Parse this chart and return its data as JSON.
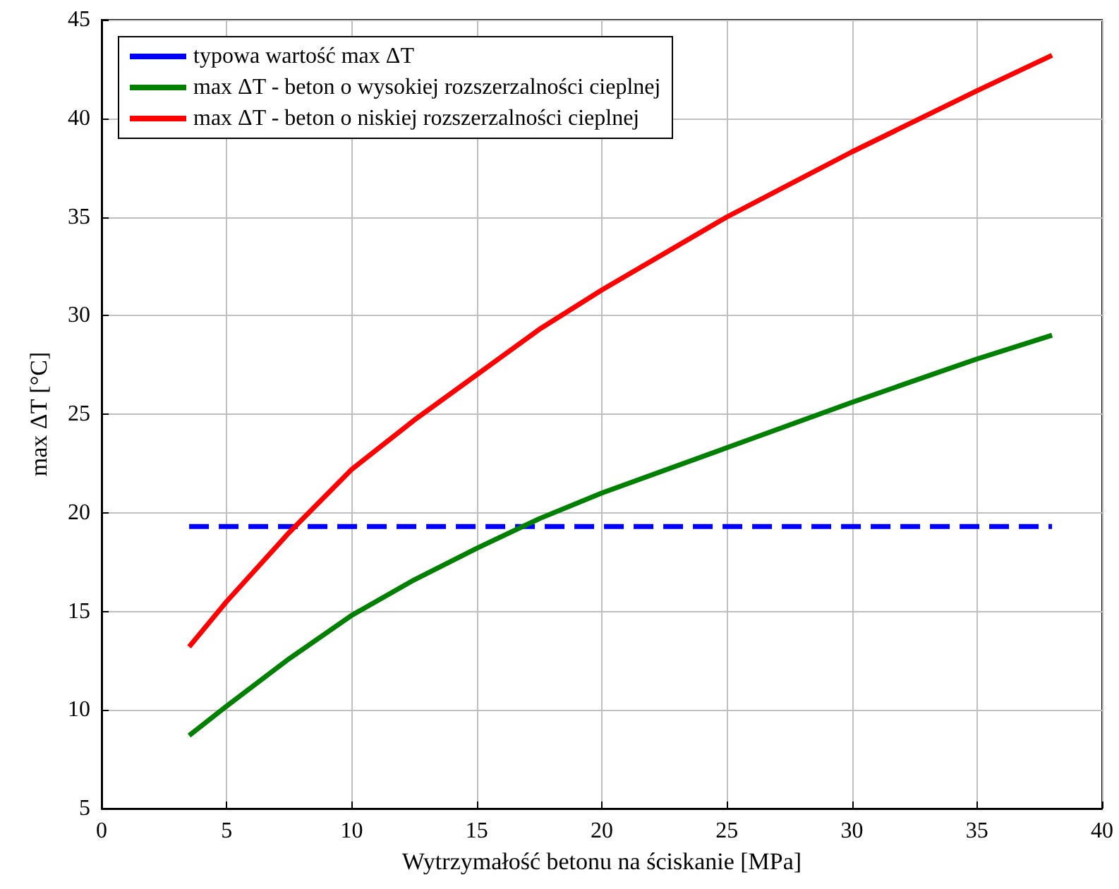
{
  "chart_data": {
    "type": "line",
    "xlabel": "Wytrzymałość betonu na ściskanie [MPa]",
    "ylabel": "max ΔT [°C]",
    "x": [
      3.5,
      5,
      7.5,
      10,
      12.5,
      15,
      17.5,
      20,
      25,
      30,
      35,
      38
    ],
    "series": [
      {
        "name": "typowa wartość max ΔT",
        "color": "#0000ff",
        "line_style": "dashed",
        "x": [
          3.5,
          38
        ],
        "values": [
          19.3,
          19.3
        ]
      },
      {
        "name": "max ΔT - beton o wysokiej rozszerzalności cieplnej",
        "color": "#008000",
        "values": [
          8.7,
          10.2,
          12.6,
          14.8,
          16.6,
          18.2,
          19.7,
          21,
          23.3,
          25.6,
          27.8,
          29
        ]
      },
      {
        "name": "max ΔT - beton o niskiej rozszerzalności cieplnej",
        "color": "#ff0000",
        "values": [
          13.2,
          15.5,
          19,
          22.2,
          24.7,
          27,
          29.3,
          31.3,
          35,
          38.3,
          41.4,
          43.2
        ]
      }
    ],
    "xlim": [
      0,
      40
    ],
    "xticks": [
      0,
      5,
      10,
      15,
      20,
      25,
      30,
      35,
      40
    ],
    "ylim": [
      5,
      45
    ],
    "yticks": [
      5,
      10,
      15,
      20,
      25,
      30,
      35,
      40,
      45
    ],
    "grid": true,
    "legend": "top left",
    "marker": "none",
    "line_style": "solid"
  }
}
